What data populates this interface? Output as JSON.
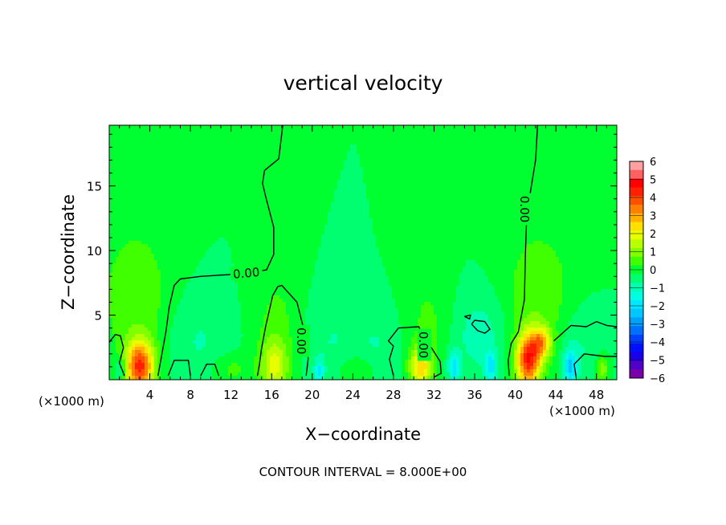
{
  "chart_data": {
    "type": "heatmap",
    "title": "vertical velocity",
    "xlabel": "X−coordinate",
    "ylabel": "Z−coordinate",
    "x_unit_left": "(×1000 m)",
    "x_unit_right": "(×1000 m)",
    "footer": "CONTOUR INTERVAL = 8.000E+00",
    "xlim": [
      0,
      50
    ],
    "ylim": [
      0,
      19.7
    ],
    "x_ticks": [
      4,
      8,
      12,
      16,
      20,
      24,
      28,
      32,
      36,
      40,
      44,
      48
    ],
    "x_tick_labels": [
      "4",
      "8",
      "12",
      "16",
      "20",
      "24",
      "28",
      "32",
      "36",
      "40",
      "44",
      "48"
    ],
    "y_ticks": [
      5,
      10,
      15
    ],
    "y_tick_labels": [
      "5",
      "10",
      "15"
    ],
    "contour_labels": [
      {
        "text": "0.00",
        "x": 13.5,
        "y": 8.3,
        "rotate": -5
      },
      {
        "text": "0.00",
        "x": 19.0,
        "y": 3.0,
        "rotate": 90
      },
      {
        "text": "0.00",
        "x": 31.0,
        "y": 2.7,
        "rotate": 90
      },
      {
        "text": "0.00",
        "x": 41.0,
        "y": 13.2,
        "rotate": 90
      }
    ],
    "contour_lines": [
      [
        [
          14.6,
          0.3
        ],
        [
          14.8,
          1.2
        ],
        [
          15.0,
          2.4
        ],
        [
          15.4,
          4.1
        ],
        [
          16.1,
          6.5
        ],
        [
          16.6,
          7.2
        ],
        [
          17.0,
          7.3
        ],
        [
          18.5,
          6.0
        ],
        [
          19.0,
          4.4
        ],
        [
          19.5,
          3.0
        ],
        [
          19.6,
          1.6
        ],
        [
          19.4,
          0.3
        ]
      ],
      [
        [
          4.8,
          0.3
        ],
        [
          5.1,
          1.6
        ],
        [
          5.6,
          3.8
        ],
        [
          5.9,
          5.6
        ],
        [
          6.4,
          7.3
        ],
        [
          7.0,
          7.8
        ],
        [
          9.0,
          8.0
        ],
        [
          11.0,
          8.1
        ],
        [
          13.2,
          8.2
        ],
        [
          15.5,
          8.5
        ],
        [
          16.2,
          9.7
        ],
        [
          16.2,
          11.8
        ],
        [
          15.4,
          14.2
        ],
        [
          15.1,
          15.2
        ],
        [
          15.3,
          16.2
        ],
        [
          16.7,
          17.1
        ],
        [
          17.1,
          19.7
        ]
      ],
      [
        [
          39.4,
          0.3
        ],
        [
          39.3,
          1.5
        ],
        [
          39.6,
          2.8
        ],
        [
          40.3,
          3.7
        ],
        [
          40.9,
          6.2
        ],
        [
          41.0,
          9.7
        ],
        [
          41.1,
          12.0
        ],
        [
          41.5,
          14.6
        ],
        [
          42.0,
          17.0
        ],
        [
          42.2,
          19.7
        ]
      ],
      [
        [
          0.0,
          2.9
        ],
        [
          0.6,
          3.5
        ],
        [
          1.1,
          3.4
        ],
        [
          1.4,
          2.5
        ],
        [
          1.0,
          1.3
        ],
        [
          1.5,
          0.3
        ]
      ],
      [
        [
          5.8,
          0.3
        ],
        [
          6.4,
          1.5
        ],
        [
          7.8,
          1.5
        ],
        [
          8.0,
          0.3
        ]
      ],
      [
        [
          9.0,
          0.3
        ],
        [
          9.6,
          1.2
        ],
        [
          10.4,
          1.2
        ],
        [
          10.8,
          0.3
        ]
      ],
      [
        [
          28.0,
          0.3
        ],
        [
          27.6,
          1.6
        ],
        [
          28.0,
          2.6
        ],
        [
          27.5,
          3.0
        ],
        [
          28.5,
          4.0
        ],
        [
          30.5,
          4.1
        ],
        [
          31.0,
          3.2
        ],
        [
          31.8,
          2.4
        ],
        [
          32.6,
          1.4
        ],
        [
          32.7,
          0.5
        ],
        [
          32.0,
          0.2
        ]
      ],
      [
        [
          46.0,
          0.2
        ],
        [
          45.8,
          1.2
        ],
        [
          46.8,
          2.0
        ],
        [
          48.8,
          1.8
        ],
        [
          50.0,
          1.8
        ]
      ],
      [
        [
          43.8,
          3.0
        ],
        [
          45.5,
          4.2
        ],
        [
          47.0,
          4.1
        ],
        [
          48.0,
          4.5
        ],
        [
          49.0,
          4.2
        ],
        [
          50.0,
          4.1
        ]
      ],
      [
        [
          35.7,
          4.3
        ],
        [
          36.3,
          3.8
        ],
        [
          37.0,
          3.6
        ],
        [
          37.5,
          3.9
        ],
        [
          37.0,
          4.5
        ],
        [
          36.0,
          4.6
        ],
        [
          35.7,
          4.3
        ]
      ],
      [
        [
          35.0,
          4.9
        ],
        [
          35.6,
          5.0
        ],
        [
          35.5,
          4.7
        ],
        [
          35.0,
          4.9
        ]
      ]
    ],
    "colorbar": {
      "ticks": [
        "6",
        "5",
        "4",
        "3",
        "2",
        "1",
        "0",
        "−1",
        "−2",
        "−3",
        "−4",
        "−5",
        "−6"
      ],
      "levels": [
        -6,
        -5.5,
        -5,
        -4.5,
        -4,
        -3.5,
        -3,
        -2.5,
        -2,
        -1.5,
        -1,
        -0.5,
        0,
        0.5,
        1,
        1.5,
        2,
        2.5,
        3,
        3.5,
        4,
        4.5,
        5,
        5.5,
        6
      ],
      "colors": [
        "#7a00a8",
        "#5000c8",
        "#1a00e8",
        "#0010ff",
        "#0040ff",
        "#0070ff",
        "#00a0ff",
        "#00c8ff",
        "#00e8ff",
        "#00ffe0",
        "#00ffb0",
        "#00ff70",
        "#00ff30",
        "#40ff00",
        "#80ff00",
        "#b8ff00",
        "#e8ff00",
        "#ffe000",
        "#ffb000",
        "#ff8000",
        "#ff5000",
        "#ff2000",
        "#ff0000",
        "#ff6060",
        "#ffa0a0"
      ]
    },
    "background_color": "#00ff30",
    "features": [
      {
        "x": 3.0,
        "z": 1.0,
        "sx": 1.4,
        "sz": 2.0,
        "amp": 4.5
      },
      {
        "x": 41.3,
        "z": 1.5,
        "sx": 1.2,
        "sz": 2.1,
        "amp": 4.6
      },
      {
        "x": 42.6,
        "z": 2.9,
        "sx": 1.0,
        "sz": 1.2,
        "amp": 2.5
      },
      {
        "x": 30.7,
        "z": 1.0,
        "sx": 1.1,
        "sz": 1.6,
        "amp": 2.8
      },
      {
        "x": 16.3,
        "z": 1.0,
        "sx": 1.4,
        "sz": 2.2,
        "amp": 2.0
      },
      {
        "x": 2.6,
        "z": 6.5,
        "sx": 3.5,
        "sz": 5.5,
        "amp": 0.9
      },
      {
        "x": 42.3,
        "z": 6.5,
        "sx": 3.5,
        "sz": 5.5,
        "amp": 0.9
      },
      {
        "x": 31.5,
        "z": 4.5,
        "sx": 2.5,
        "sz": 4.0,
        "amp": 0.6
      },
      {
        "x": 16.6,
        "z": 4.8,
        "sx": 2.5,
        "sz": 4.0,
        "amp": 0.6
      },
      {
        "x": 8.8,
        "z": 3.0,
        "sx": 3.2,
        "sz": 3.5,
        "amp": -0.55
      },
      {
        "x": 21.8,
        "z": 3.0,
        "sx": 3.0,
        "sz": 3.5,
        "amp": -0.5
      },
      {
        "x": 26.5,
        "z": 2.5,
        "sx": 2.5,
        "sz": 3.0,
        "amp": -0.5
      },
      {
        "x": 36.5,
        "z": 3.5,
        "sx": 2.8,
        "sz": 3.2,
        "amp": -0.8
      },
      {
        "x": 46.5,
        "z": 2.8,
        "sx": 2.2,
        "sz": 3.0,
        "amp": -0.6
      },
      {
        "x": 34.0,
        "z": 1.0,
        "sx": 0.6,
        "sz": 1.2,
        "amp": -1.8
      },
      {
        "x": 37.6,
        "z": 1.0,
        "sx": 0.6,
        "sz": 1.2,
        "amp": -1.6
      },
      {
        "x": 45.4,
        "z": 1.0,
        "sx": 0.7,
        "sz": 1.4,
        "amp": -2.0
      },
      {
        "x": 20.7,
        "z": 0.6,
        "sx": 0.5,
        "sz": 0.9,
        "amp": -1.4
      },
      {
        "x": 1.2,
        "z": 0.8,
        "sx": 0.6,
        "sz": 1.0,
        "amp": -1.2
      },
      {
        "x": 48.6,
        "z": 0.9,
        "sx": 0.6,
        "sz": 1.0,
        "amp": 1.5
      },
      {
        "x": 12.0,
        "z": 0.8,
        "sx": 2.0,
        "sz": 1.2,
        "amp": 0.7
      },
      {
        "x": 24.5,
        "z": 0.8,
        "sx": 1.8,
        "sz": 1.2,
        "amp": 0.8
      }
    ]
  }
}
